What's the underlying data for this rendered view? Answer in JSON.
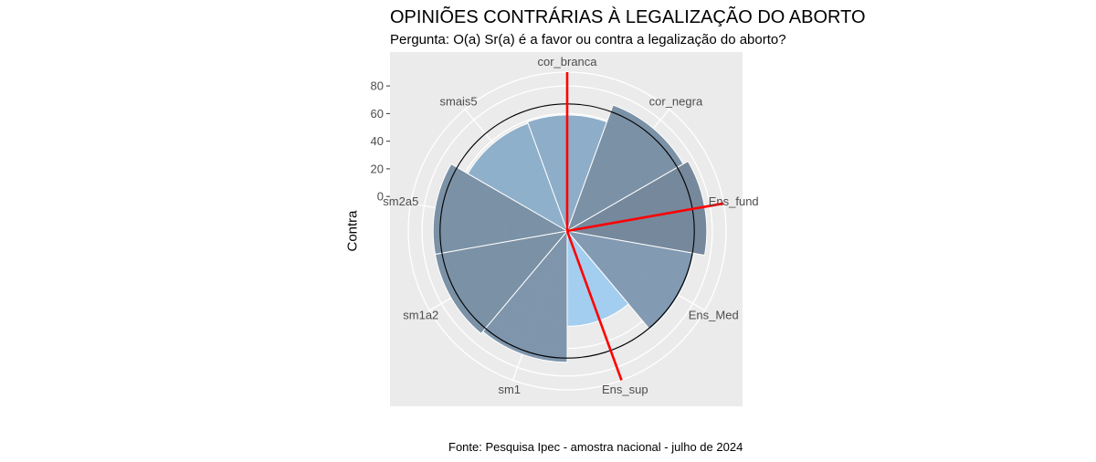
{
  "chart_data": {
    "type": "polar-bar",
    "title": "OPINIÕES CONTRÁRIAS À LEGALIZAÇÃO DO ABORTO",
    "subtitle": "Pergunta: O(a) Sr(a) é a favor ou contra a legalização do aborto?",
    "ylabel": "Contra",
    "caption": "Fonte: Pesquisa Ipec - amostra nacional - julho de 2024",
    "ylim": [
      -25,
      90
    ],
    "yticks": [
      0,
      20,
      40,
      60,
      80
    ],
    "grid": true,
    "categories": [
      "cor_branca",
      "cor_negra",
      "Ens_fund",
      "Ens_Med",
      "Ens_sup",
      "sm1",
      "sm1a2",
      "sm2a5",
      "smais5"
    ],
    "values": [
      59,
      72,
      76,
      68,
      44,
      70,
      72,
      72,
      58
    ],
    "reference_line": 67,
    "colors": {
      "panel": "#ebebeb",
      "grid": "#ffffff",
      "bar_low": "#9dcbef",
      "bar_high": "#6b7f95",
      "needle": "#ff0000",
      "reference": "#000000",
      "axis_text": "#4d4d4d"
    }
  }
}
